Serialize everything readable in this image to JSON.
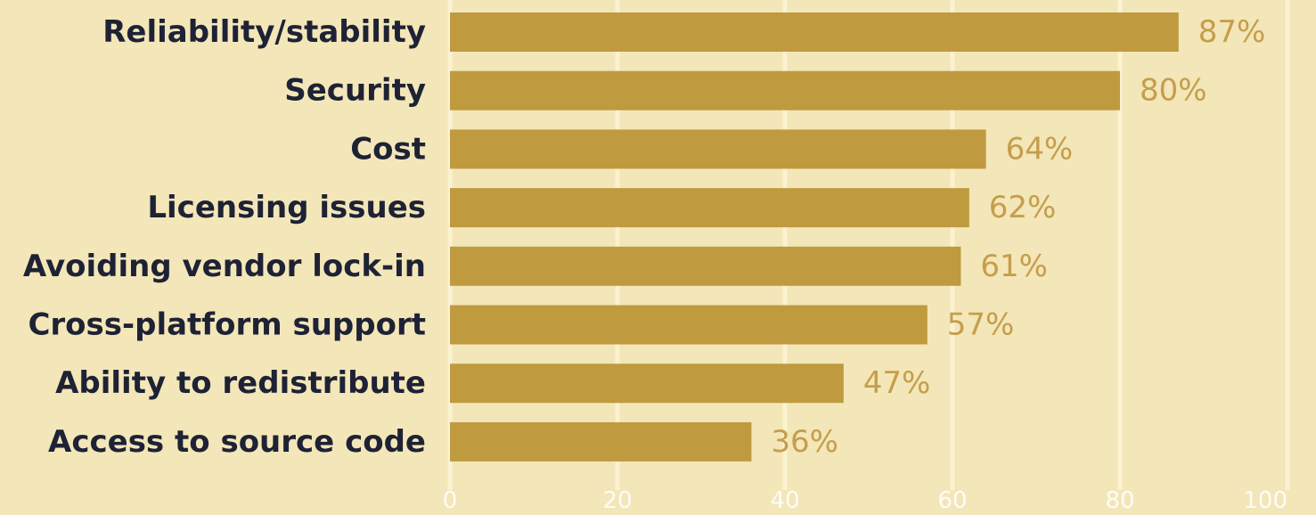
{
  "chart_data": {
    "type": "bar",
    "orientation": "horizontal",
    "categories": [
      "Reliability/stability",
      "Security",
      "Cost",
      "Licensing issues",
      "Avoiding vendor lock-in",
      "Cross-platform support",
      "Ability to redistribute",
      "Access to source code"
    ],
    "values": [
      87,
      80,
      64,
      62,
      61,
      57,
      47,
      36
    ],
    "value_labels": [
      "87%",
      "80%",
      "64%",
      "62%",
      "61%",
      "57%",
      "47%",
      "36%"
    ],
    "title": "",
    "xlabel": "",
    "ylabel": "",
    "xlim": [
      0,
      100
    ],
    "x_ticks": [
      0,
      20,
      40,
      60,
      80,
      100
    ],
    "x_tick_labels": [
      "0",
      "20",
      "40",
      "60",
      "80",
      "100"
    ],
    "grid": true,
    "colors": {
      "background": "#f3e6b8",
      "bar": "#bf9a3f",
      "value_label": "#c59e4b",
      "category_label": "#1e2235",
      "grid": "#fbf2d1",
      "tick_label": "#ffffff"
    }
  }
}
